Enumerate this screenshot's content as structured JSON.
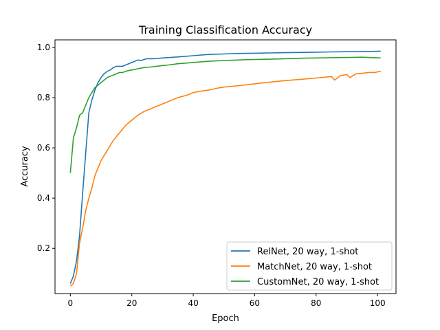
{
  "chart_data": {
    "type": "line",
    "title": "Training Classification Accuracy",
    "xlabel": "Epoch",
    "ylabel": "Accuracy",
    "xlim": [
      -5,
      106
    ],
    "ylim": [
      0.02,
      1.03
    ],
    "xticks": [
      0,
      20,
      40,
      60,
      80,
      100
    ],
    "yticks": [
      0.2,
      0.4,
      0.6,
      0.8,
      1.0
    ],
    "xtick_labels": [
      "0",
      "20",
      "40",
      "60",
      "80",
      "100"
    ],
    "ytick_labels": [
      "0.2",
      "0.4",
      "0.6",
      "0.8",
      "1.0"
    ],
    "grid": false,
    "legend_position": "lower-right",
    "series": [
      {
        "name": "RelNet, 20 way, 1-shot",
        "color": "#1f77b4",
        "x": [
          0,
          1,
          2,
          3,
          4,
          5,
          6,
          7,
          8,
          9,
          10,
          11,
          12,
          13,
          14,
          15,
          16,
          17,
          18,
          19,
          20,
          21,
          22,
          23,
          24,
          25,
          26,
          27,
          28,
          29,
          30,
          35,
          40,
          45,
          50,
          55,
          60,
          65,
          70,
          75,
          80,
          85,
          90,
          95,
          101
        ],
        "y": [
          0.06,
          0.09,
          0.15,
          0.25,
          0.42,
          0.58,
          0.74,
          0.79,
          0.83,
          0.86,
          0.88,
          0.895,
          0.905,
          0.91,
          0.92,
          0.925,
          0.925,
          0.925,
          0.93,
          0.935,
          0.94,
          0.945,
          0.95,
          0.948,
          0.952,
          0.955,
          0.955,
          0.955,
          0.956,
          0.957,
          0.958,
          0.962,
          0.967,
          0.972,
          0.974,
          0.976,
          0.977,
          0.978,
          0.979,
          0.98,
          0.981,
          0.982,
          0.983,
          0.983,
          0.985
        ]
      },
      {
        "name": "MatchNet, 20 way, 1-shot",
        "color": "#ff7f0e",
        "x": [
          0,
          1,
          2,
          3,
          4,
          5,
          6,
          7,
          8,
          9,
          10,
          11,
          12,
          13,
          14,
          15,
          16,
          17,
          18,
          19,
          20,
          22,
          24,
          26,
          28,
          30,
          32,
          35,
          38,
          40,
          42,
          45,
          48,
          50,
          55,
          60,
          65,
          70,
          75,
          80,
          85,
          86,
          88,
          90,
          91,
          93,
          95,
          97,
          99,
          101
        ],
        "y": [
          0.05,
          0.06,
          0.1,
          0.22,
          0.28,
          0.35,
          0.4,
          0.44,
          0.49,
          0.52,
          0.55,
          0.57,
          0.59,
          0.61,
          0.63,
          0.645,
          0.66,
          0.675,
          0.69,
          0.7,
          0.71,
          0.73,
          0.745,
          0.755,
          0.765,
          0.775,
          0.785,
          0.8,
          0.81,
          0.82,
          0.825,
          0.83,
          0.838,
          0.842,
          0.848,
          0.855,
          0.862,
          0.868,
          0.873,
          0.878,
          0.884,
          0.87,
          0.888,
          0.892,
          0.88,
          0.895,
          0.897,
          0.9,
          0.9,
          0.905
        ]
      },
      {
        "name": "CustomNet, 20 way, 1-shot",
        "color": "#2ca02c",
        "x": [
          0,
          1,
          2,
          3,
          4,
          5,
          6,
          7,
          8,
          9,
          10,
          11,
          12,
          13,
          14,
          15,
          16,
          17,
          18,
          19,
          20,
          22,
          24,
          26,
          28,
          30,
          32,
          35,
          40,
          45,
          50,
          55,
          60,
          65,
          70,
          75,
          80,
          85,
          90,
          95,
          101
        ],
        "y": [
          0.5,
          0.64,
          0.68,
          0.73,
          0.74,
          0.77,
          0.8,
          0.82,
          0.84,
          0.85,
          0.86,
          0.87,
          0.88,
          0.885,
          0.89,
          0.895,
          0.9,
          0.9,
          0.905,
          0.908,
          0.91,
          0.915,
          0.92,
          0.922,
          0.925,
          0.928,
          0.93,
          0.935,
          0.94,
          0.945,
          0.948,
          0.95,
          0.952,
          0.953,
          0.955,
          0.957,
          0.958,
          0.959,
          0.96,
          0.961,
          0.958
        ]
      }
    ]
  }
}
